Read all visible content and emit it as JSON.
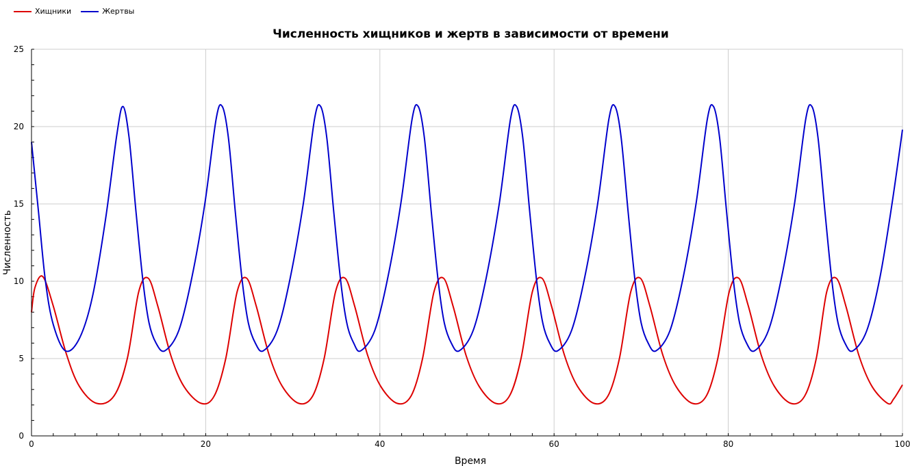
{
  "chart_data": {
    "type": "line",
    "title": "Численность хищников и жертв в зависимости от времени",
    "xlabel": "Время",
    "ylabel": "Численность",
    "xlim": [
      0,
      100
    ],
    "ylim": [
      0,
      25
    ],
    "x_ticks": [
      "0",
      "20",
      "40",
      "60",
      "80",
      "100"
    ],
    "y_ticks": [
      "0",
      "5",
      "10",
      "15",
      "20",
      "25"
    ],
    "grid": true,
    "legend_position": "top-left",
    "series": [
      {
        "name": "Хищники",
        "color": "#dd0000",
        "x": [
          0,
          0.4,
          1.3,
          2.5,
          4.0,
          5.5,
          7.5,
          9.5,
          11.0,
          12.3,
          13.4,
          14.5,
          16.0,
          17.5,
          19.5,
          21.0,
          22.3,
          23.6,
          24.7,
          25.8,
          27.3,
          28.8,
          30.7,
          32.3,
          33.6,
          34.9,
          36.0,
          37.1,
          38.6,
          40.1,
          42.0,
          43.6,
          44.9,
          46.2,
          47.3,
          48.4,
          49.9,
          51.4,
          53.3,
          54.9,
          56.2,
          57.5,
          58.6,
          59.7,
          61.2,
          62.7,
          64.6,
          66.2,
          67.5,
          68.8,
          69.9,
          71.0,
          72.5,
          74.0,
          75.9,
          77.5,
          78.8,
          80.1,
          81.2,
          82.3,
          83.8,
          85.3,
          87.2,
          88.8,
          90.1,
          91.3,
          92.4,
          93.5,
          95.0,
          96.5,
          98.3,
          99.0,
          100
        ],
        "values": [
          8.0,
          9.6,
          10.3,
          8.4,
          5.3,
          3.2,
          2.1,
          2.6,
          5.0,
          9.3,
          10.2,
          8.4,
          5.2,
          3.2,
          2.1,
          2.6,
          5.0,
          9.3,
          10.2,
          8.4,
          5.2,
          3.2,
          2.1,
          2.6,
          5.0,
          9.3,
          10.2,
          8.4,
          5.2,
          3.2,
          2.1,
          2.6,
          5.0,
          9.3,
          10.2,
          8.4,
          5.2,
          3.2,
          2.1,
          2.6,
          5.0,
          9.3,
          10.2,
          8.4,
          5.2,
          3.2,
          2.1,
          2.6,
          5.0,
          9.3,
          10.2,
          8.4,
          5.2,
          3.2,
          2.1,
          2.6,
          5.0,
          9.3,
          10.2,
          8.4,
          5.2,
          3.2,
          2.1,
          2.6,
          5.0,
          9.3,
          10.2,
          8.4,
          5.2,
          3.2,
          2.1,
          2.4,
          3.3
        ]
      },
      {
        "name": "Жертвы",
        "color": "#0000cc",
        "x": [
          0,
          0.8,
          1.6,
          2.5,
          3.9,
          5.5,
          7.0,
          8.5,
          9.8,
          10.5,
          11.2,
          12.0,
          12.8,
          13.5,
          14.3,
          15.3,
          16.9,
          18.4,
          19.9,
          21.2,
          21.9,
          22.6,
          23.4,
          24.2,
          24.9,
          25.7,
          26.6,
          28.2,
          29.7,
          31.2,
          32.5,
          33.2,
          33.9,
          34.7,
          35.5,
          36.2,
          37.0,
          37.8,
          39.4,
          40.9,
          42.4,
          43.7,
          44.4,
          45.1,
          45.9,
          46.7,
          47.4,
          48.2,
          49.1,
          50.7,
          52.2,
          53.7,
          55.0,
          55.7,
          56.4,
          57.2,
          58.0,
          58.7,
          59.5,
          60.4,
          62.0,
          63.5,
          65.0,
          66.3,
          67.0,
          67.7,
          68.5,
          69.3,
          70.0,
          70.8,
          71.7,
          73.3,
          74.8,
          76.3,
          77.6,
          78.3,
          79.0,
          79.8,
          80.6,
          81.3,
          82.1,
          83.0,
          84.6,
          86.1,
          87.6,
          88.9,
          89.6,
          90.3,
          91.1,
          91.9,
          92.6,
          93.4,
          94.3,
          95.9,
          97.4,
          98.8,
          100
        ],
        "values": [
          19.0,
          14.5,
          10.0,
          7.2,
          5.5,
          6.3,
          9.0,
          14.0,
          19.5,
          21.3,
          19.3,
          14.5,
          10.0,
          7.3,
          6.0,
          5.5,
          6.8,
          10.2,
          15.0,
          20.5,
          21.3,
          19.3,
          14.5,
          10.0,
          7.3,
          6.0,
          5.5,
          6.8,
          10.2,
          15.0,
          20.5,
          21.3,
          19.3,
          14.5,
          10.0,
          7.3,
          6.0,
          5.5,
          6.8,
          10.2,
          15.0,
          20.5,
          21.3,
          19.3,
          14.5,
          10.0,
          7.3,
          6.0,
          5.5,
          6.8,
          10.2,
          15.0,
          20.5,
          21.3,
          19.3,
          14.5,
          10.0,
          7.3,
          6.0,
          5.5,
          6.8,
          10.2,
          15.0,
          20.5,
          21.3,
          19.3,
          14.5,
          10.0,
          7.3,
          6.0,
          5.5,
          6.8,
          10.2,
          15.0,
          20.5,
          21.3,
          19.3,
          14.5,
          10.0,
          7.3,
          6.0,
          5.5,
          6.8,
          10.2,
          15.0,
          20.5,
          21.3,
          19.3,
          14.5,
          10.0,
          7.3,
          6.0,
          5.5,
          6.8,
          10.2,
          15.0,
          19.8
        ]
      }
    ]
  }
}
